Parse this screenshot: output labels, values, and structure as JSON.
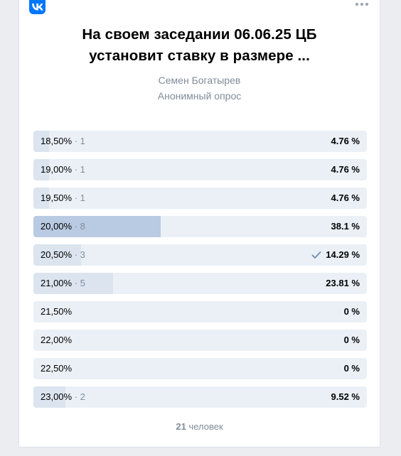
{
  "poll": {
    "title": "На своем заседании 06.06.25 ЦБ установит ставку в размере ...",
    "author": "Семен Богатырев",
    "type": "Анонимный опрос",
    "options": [
      {
        "label": "18,50%",
        "count": "1",
        "percent": "4.76 %",
        "fraction": 0.0476,
        "voted": false
      },
      {
        "label": "19,00%",
        "count": "1",
        "percent": "4.76 %",
        "fraction": 0.0476,
        "voted": false
      },
      {
        "label": "19,50%",
        "count": "1",
        "percent": "4.76 %",
        "fraction": 0.0476,
        "voted": false
      },
      {
        "label": "20,00%",
        "count": "8",
        "percent": "38.1 %",
        "fraction": 0.381,
        "voted": false
      },
      {
        "label": "20,50%",
        "count": "3",
        "percent": "14.29 %",
        "fraction": 0.1429,
        "voted": true
      },
      {
        "label": "21,00%",
        "count": "5",
        "percent": "23.81 %",
        "fraction": 0.2381,
        "voted": false
      },
      {
        "label": "21,50%",
        "count": "",
        "percent": "0 %",
        "fraction": 0,
        "voted": false
      },
      {
        "label": "22,00%",
        "count": "",
        "percent": "0 %",
        "fraction": 0,
        "voted": false
      },
      {
        "label": "22,50%",
        "count": "",
        "percent": "0 %",
        "fraction": 0,
        "voted": false
      },
      {
        "label": "23,00%",
        "count": "2",
        "percent": "9.52 %",
        "fraction": 0.0952,
        "voted": false
      }
    ],
    "total_number": "21",
    "total_label": "человек"
  },
  "icons": {
    "logo": "vk-logo-icon",
    "menu": "more-horizontal-icon",
    "voted": "checkmark-icon"
  },
  "colors": {
    "logo": "#0077ff",
    "bar": "#ebf0f6",
    "fill": "#dbe4ef",
    "fill_leader": "#b9cbe2",
    "check": "#6e8fb4"
  }
}
